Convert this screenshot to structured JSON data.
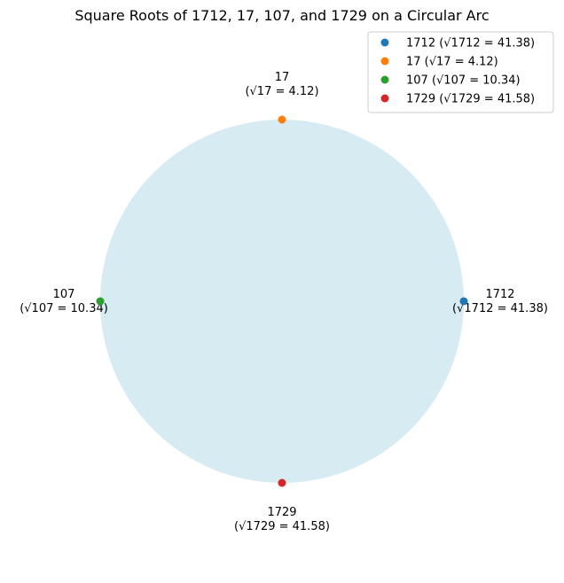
{
  "chart_data": {
    "type": "scatter",
    "title": "Square Roots of 1712, 17, 107, and 1729 on a Circular Arc",
    "xlabel": "",
    "ylabel": "",
    "grid": false,
    "axes_visible": false,
    "legend_position": "top-right",
    "circle": {
      "center": [
        0,
        0
      ],
      "radius": 1,
      "fill_color": "#add8e6",
      "fill_opacity": 0.5
    },
    "series": [
      {
        "name": "1712 (√1712 = 41.38)",
        "color": "#1f77b4",
        "x": 1,
        "y": 0,
        "label_lines": [
          "1712",
          "(√1712 = 41.38)"
        ],
        "label_side": "right"
      },
      {
        "name": "17 (√17 = 4.12)",
        "color": "#ff7f0e",
        "x": 0,
        "y": 1,
        "label_lines": [
          "17",
          "(√17 = 4.12)"
        ],
        "label_side": "top"
      },
      {
        "name": "107 (√107 = 10.34)",
        "color": "#2ca02c",
        "x": -1,
        "y": 0,
        "label_lines": [
          "107",
          "(√107 = 10.34)"
        ],
        "label_side": "left"
      },
      {
        "name": "1729 (√1729 = 41.58)",
        "color": "#d62728",
        "x": 0,
        "y": -1,
        "label_lines": [
          "1729",
          "(√1729 = 41.58)"
        ],
        "label_side": "bottom"
      }
    ]
  }
}
